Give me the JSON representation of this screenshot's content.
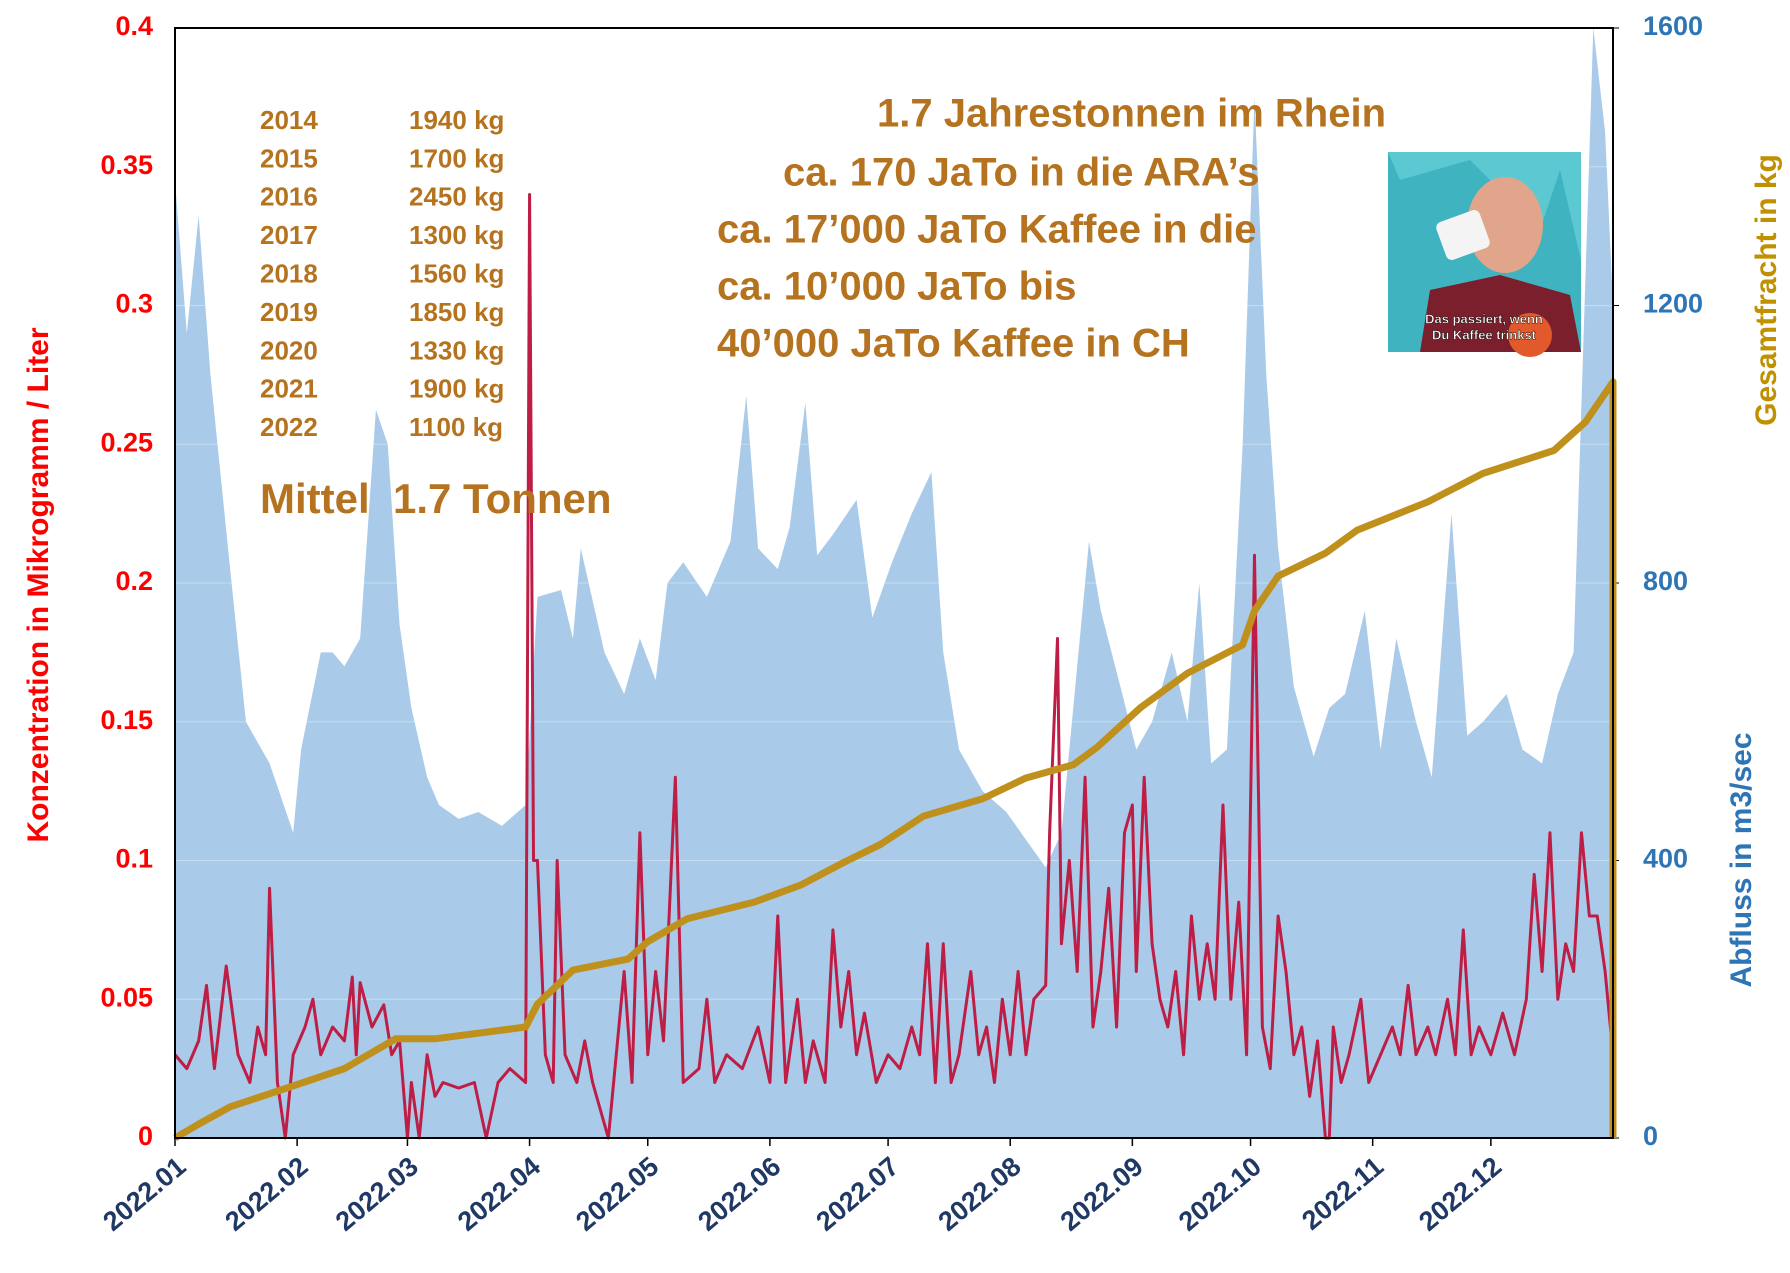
{
  "chart_data": {
    "type": "line",
    "ylabel": "Konzentration in Mikrogramm / Liter",
    "y2label": "Abfluss in m3/sec",
    "y2label_cumulative": "Gesamtfracht in kg",
    "xlim": [
      0,
      365
    ],
    "xticks": [
      {
        "value": 0,
        "label": "2022.01"
      },
      {
        "value": 31,
        "label": "2022.02"
      },
      {
        "value": 59,
        "label": "2022.03"
      },
      {
        "value": 90,
        "label": "2022.04"
      },
      {
        "value": 120,
        "label": "2022.05"
      },
      {
        "value": 151,
        "label": "2022.06"
      },
      {
        "value": 181,
        "label": "2022.07"
      },
      {
        "value": 212,
        "label": "2022.08"
      },
      {
        "value": 243,
        "label": "2022.09"
      },
      {
        "value": 273,
        "label": "2022.10"
      },
      {
        "value": 304,
        "label": "2022.11"
      },
      {
        "value": 334,
        "label": "2022.12"
      }
    ],
    "ylim": [
      0,
      0.4
    ],
    "yticks": [
      0,
      0.05,
      0.1,
      0.15,
      0.2,
      0.25,
      0.3,
      0.35,
      0.4
    ],
    "y2lim": [
      0,
      1600
    ],
    "y2ticks": [
      0,
      400,
      800,
      1200,
      1600
    ],
    "grid": true,
    "series": [
      {
        "type": "area",
        "axis": "y2",
        "color": "#a9cbe9",
        "x": [
          0,
          3,
          6,
          9,
          14,
          18,
          24,
          30,
          32,
          37,
          40,
          43,
          47,
          51,
          54,
          57,
          60,
          64,
          67,
          72,
          77,
          83,
          89,
          92,
          98,
          101,
          103,
          109,
          114,
          118,
          122,
          125,
          129,
          135,
          141,
          145,
          148,
          153,
          156,
          160,
          163,
          167,
          173,
          177,
          182,
          187,
          192,
          195,
          199,
          205,
          211,
          216,
          221,
          225,
          228,
          232,
          235,
          240,
          244,
          248,
          253,
          257,
          260,
          263,
          267,
          271,
          274,
          277,
          280,
          284,
          289,
          293,
          297,
          302,
          306,
          310,
          315,
          319,
          324,
          328,
          332,
          338,
          342,
          347,
          351,
          355,
          360,
          363,
          365
        ],
        "values": [
          1380,
          1160,
          1330,
          1100,
          820,
          600,
          540,
          440,
          560,
          700,
          700,
          680,
          720,
          1050,
          1000,
          740,
          620,
          520,
          480,
          460,
          470,
          450,
          480,
          780,
          790,
          720,
          850,
          700,
          640,
          720,
          660,
          800,
          830,
          780,
          860,
          1070,
          850,
          820,
          880,
          1060,
          840,
          870,
          920,
          750,
          830,
          900,
          960,
          700,
          560,
          500,
          470,
          430,
          390,
          440,
          620,
          860,
          760,
          650,
          560,
          600,
          700,
          600,
          800,
          540,
          560,
          1000,
          1500,
          1100,
          850,
          650,
          550,
          620,
          640,
          760,
          560,
          720,
          600,
          520,
          900,
          580,
          600,
          640,
          560,
          540,
          640,
          700,
          1600,
          1450,
          1200
        ]
      },
      {
        "type": "line",
        "axis": "y",
        "color": "#be1e45",
        "x": [
          0,
          3,
          6,
          8,
          10,
          13,
          16,
          19,
          21,
          23,
          24,
          26,
          28,
          30,
          33,
          35,
          37,
          40,
          43,
          45,
          46,
          47,
          50,
          53,
          55,
          57,
          59,
          60,
          62,
          64,
          66,
          68,
          72,
          76,
          79,
          82,
          85,
          89,
          90,
          91,
          92,
          94,
          96,
          97,
          99,
          102,
          104,
          106,
          110,
          112,
          114,
          116,
          118,
          120,
          122,
          124,
          127,
          129,
          133,
          135,
          137,
          140,
          144,
          148,
          151,
          153,
          155,
          158,
          160,
          162,
          165,
          167,
          169,
          171,
          173,
          175,
          178,
          181,
          184,
          187,
          189,
          191,
          193,
          195,
          197,
          199,
          202,
          204,
          206,
          208,
          210,
          212,
          214,
          216,
          218,
          221,
          222,
          224,
          225,
          227,
          229,
          231,
          233,
          235,
          237,
          239,
          241,
          243,
          244,
          246,
          248,
          250,
          252,
          254,
          256,
          258,
          260,
          262,
          264,
          266,
          268,
          270,
          272,
          274,
          276,
          278,
          280,
          282,
          284,
          286,
          288,
          290,
          292,
          293,
          294,
          296,
          298,
          301,
          303,
          306,
          309,
          311,
          313,
          315,
          318,
          320,
          323,
          325,
          327,
          329,
          331,
          334,
          337,
          340,
          343,
          345,
          347,
          349,
          351,
          353,
          355,
          357,
          359,
          361,
          363,
          365
        ],
        "values": [
          0.03,
          0.025,
          0.035,
          0.055,
          0.025,
          0.062,
          0.03,
          0.02,
          0.04,
          0.03,
          0.09,
          0.02,
          0,
          0.03,
          0.04,
          0.05,
          0.03,
          0.04,
          0.035,
          0.058,
          0.03,
          0.056,
          0.04,
          0.048,
          0.03,
          0.035,
          0,
          0.02,
          0,
          0.03,
          0.015,
          0.02,
          0.018,
          0.02,
          0,
          0.02,
          0.025,
          0.02,
          0.34,
          0.1,
          0.1,
          0.03,
          0.02,
          0.1,
          0.03,
          0.02,
          0.035,
          0.02,
          0,
          0.03,
          0.06,
          0.02,
          0.11,
          0.03,
          0.06,
          0.035,
          0.13,
          0.02,
          0.025,
          0.05,
          0.02,
          0.03,
          0.025,
          0.04,
          0.02,
          0.08,
          0.02,
          0.05,
          0.02,
          0.035,
          0.02,
          0.075,
          0.04,
          0.06,
          0.03,
          0.045,
          0.02,
          0.03,
          0.025,
          0.04,
          0.03,
          0.07,
          0.02,
          0.07,
          0.02,
          0.03,
          0.06,
          0.03,
          0.04,
          0.02,
          0.05,
          0.03,
          0.06,
          0.03,
          0.05,
          0.055,
          0.11,
          0.18,
          0.07,
          0.1,
          0.06,
          0.13,
          0.04,
          0.06,
          0.09,
          0.04,
          0.11,
          0.12,
          0.06,
          0.13,
          0.07,
          0.05,
          0.04,
          0.06,
          0.03,
          0.08,
          0.05,
          0.07,
          0.05,
          0.12,
          0.05,
          0.085,
          0.03,
          0.21,
          0.04,
          0.025,
          0.08,
          0.06,
          0.03,
          0.04,
          0.015,
          0.035,
          0,
          0,
          0.04,
          0.02,
          0.03,
          0.05,
          0.02,
          0.03,
          0.04,
          0.03,
          0.055,
          0.03,
          0.04,
          0.03,
          0.05,
          0.03,
          0.075,
          0.03,
          0.04,
          0.03,
          0.045,
          0.03,
          0.05,
          0.095,
          0.06,
          0.11,
          0.05,
          0.07,
          0.06,
          0.11,
          0.08,
          0.08,
          0.06,
          0.03
        ]
      },
      {
        "type": "line",
        "axis": "y2",
        "color": "#c0901c",
        "x": [
          0,
          6,
          14,
          31,
          43,
          56,
          66,
          89,
          92,
          101,
          115,
          120,
          130,
          147,
          159,
          170,
          179,
          190,
          205,
          216,
          228,
          234,
          245,
          257,
          271,
          274,
          280,
          292,
          300,
          318,
          332,
          350,
          358,
          365,
          365
        ],
        "values": [
          0,
          20,
          45,
          77,
          100,
          143,
          143,
          160,
          193,
          242,
          258,
          283,
          316,
          340,
          365,
          398,
          423,
          464,
          489,
          519,
          538,
          563,
          620,
          670,
          711,
          760,
          810,
          843,
          876,
          917,
          958,
          991,
          1032,
          1090,
          0
        ]
      }
    ],
    "annotations": {
      "years": [
        {
          "year": "2014",
          "amount": "1940 kg"
        },
        {
          "year": "2015",
          "amount": "1700 kg"
        },
        {
          "year": "2016",
          "amount": "2450 kg"
        },
        {
          "year": "2017",
          "amount": "1300 kg"
        },
        {
          "year": "2018",
          "amount": "1560 kg"
        },
        {
          "year": "2019",
          "amount": "1850 kg"
        },
        {
          "year": "2020",
          "amount": "1330 kg"
        },
        {
          "year": "2021",
          "amount": "1900 kg"
        },
        {
          "year": "2022",
          "amount": "1100 kg"
        }
      ],
      "mean": "Mittel  1.7 Tonnen",
      "headline": [
        "1.7 Jahrestonnen im Rhein",
        "ca. 170 JaTo in die ARA’s",
        "ca. 17’000 JaTo Kaffee in die",
        "ca. 10’000 JaTo bis",
        "40’000 JaTo Kaffee in CH"
      ],
      "photo_caption": [
        "Das passiert, wenn",
        "Du Kaffee trinkst"
      ]
    }
  }
}
